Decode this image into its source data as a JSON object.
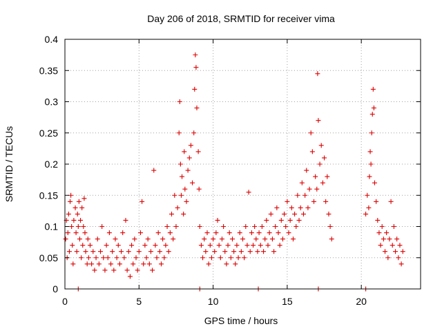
{
  "chart_data": {
    "type": "scatter",
    "title": "Day 206 of 2018, SRMTID for receiver vima",
    "xlabel": "GPS time / hours",
    "ylabel": "SRMTID / TECUs",
    "xlim": [
      0,
      24
    ],
    "ylim": [
      0,
      0.4
    ],
    "xticks": [
      0,
      5,
      10,
      15,
      20
    ],
    "xtick_labels": [
      "0",
      "5",
      "10",
      "15",
      "20"
    ],
    "yticks": [
      0,
      0.05,
      0.1,
      0.15,
      0.2,
      0.25,
      0.3,
      0.35,
      0.4
    ],
    "ytick_labels": [
      "0",
      "0.05",
      "0.1",
      "0.15",
      "0.2",
      "0.25",
      "0.3",
      "0.35",
      "0.4"
    ],
    "grid": true,
    "marker": "plus",
    "color": "#dd0000",
    "series": [
      {
        "name": "SRMTID",
        "points": [
          [
            0.05,
            0.08
          ],
          [
            0.1,
            0.11
          ],
          [
            0.15,
            0.05
          ],
          [
            0.2,
            0.09
          ],
          [
            0.25,
            0.12
          ],
          [
            0.3,
            0.06
          ],
          [
            0.35,
            0.14
          ],
          [
            0.4,
            0.15
          ],
          [
            0.45,
            0.1
          ],
          [
            0.5,
            0.07
          ],
          [
            0.55,
            0.04
          ],
          [
            0.6,
            0.11
          ],
          [
            0.7,
            0.13
          ],
          [
            0.75,
            0.09
          ],
          [
            0.8,
            0.06
          ],
          [
            0.85,
            0.12
          ],
          [
            0.9,
            0.1
          ],
          [
            0.95,
            0.14
          ],
          [
            1.0,
            0.08
          ],
          [
            1.05,
            0.11
          ],
          [
            1.1,
            0.05
          ],
          [
            1.15,
            0.13
          ],
          [
            1.2,
            0.07
          ],
          [
            1.25,
            0.1
          ],
          [
            1.3,
            0.145
          ],
          [
            1.35,
            0.09
          ],
          [
            1.4,
            0.06
          ],
          [
            1.5,
            0.04
          ],
          [
            1.55,
            0.08
          ],
          [
            1.6,
            0.05
          ],
          [
            1.7,
            0.07
          ],
          [
            1.8,
            0.04
          ],
          [
            1.9,
            0.06
          ],
          [
            2.0,
            0.03
          ],
          [
            2.1,
            0.05
          ],
          [
            2.2,
            0.08
          ],
          [
            2.3,
            0.04
          ],
          [
            2.4,
            0.06
          ],
          [
            2.5,
            0.1
          ],
          [
            2.6,
            0.05
          ],
          [
            2.7,
            0.03
          ],
          [
            2.8,
            0.07
          ],
          [
            2.9,
            0.05
          ],
          [
            3.0,
            0.09
          ],
          [
            3.1,
            0.04
          ],
          [
            3.2,
            0.06
          ],
          [
            3.3,
            0.03
          ],
          [
            3.4,
            0.08
          ],
          [
            3.5,
            0.05
          ],
          [
            3.6,
            0.07
          ],
          [
            3.7,
            0.04
          ],
          [
            3.8,
            0.06
          ],
          [
            3.9,
            0.09
          ],
          [
            4.0,
            0.05
          ],
          [
            4.1,
            0.11
          ],
          [
            4.2,
            0.03
          ],
          [
            4.3,
            0.06
          ],
          [
            4.4,
            0.02
          ],
          [
            4.5,
            0.07
          ],
          [
            4.6,
            0.04
          ],
          [
            4.7,
            0.08
          ],
          [
            4.8,
            0.05
          ],
          [
            4.9,
            0.03
          ],
          [
            5.0,
            0.06
          ],
          [
            5.1,
            0.09
          ],
          [
            5.2,
            0.14
          ],
          [
            5.3,
            0.04
          ],
          [
            5.4,
            0.07
          ],
          [
            5.5,
            0.05
          ],
          [
            5.6,
            0.08
          ],
          [
            5.7,
            0.04
          ],
          [
            5.8,
            0.06
          ],
          [
            5.9,
            0.03
          ],
          [
            6.0,
            0.19
          ],
          [
            6.1,
            0.07
          ],
          [
            6.2,
            0.05
          ],
          [
            6.3,
            0.09
          ],
          [
            6.4,
            0.06
          ],
          [
            6.5,
            0.04
          ],
          [
            6.6,
            0.08
          ],
          [
            6.7,
            0.05
          ],
          [
            6.8,
            0.07
          ],
          [
            6.9,
            0.1
          ],
          [
            7.0,
            0.06
          ],
          [
            7.1,
            0.09
          ],
          [
            7.2,
            0.12
          ],
          [
            7.3,
            0.08
          ],
          [
            7.4,
            0.15
          ],
          [
            7.5,
            0.1
          ],
          [
            7.6,
            0.13
          ],
          [
            7.7,
            0.25
          ],
          [
            7.75,
            0.3
          ],
          [
            7.8,
            0.2
          ],
          [
            7.85,
            0.15
          ],
          [
            7.9,
            0.18
          ],
          [
            8.0,
            0.12
          ],
          [
            8.05,
            0.22
          ],
          [
            8.1,
            0.16
          ],
          [
            8.2,
            0.14
          ],
          [
            8.3,
            0.19
          ],
          [
            8.4,
            0.21
          ],
          [
            8.5,
            0.23
          ],
          [
            8.6,
            0.17
          ],
          [
            8.7,
            0.25
          ],
          [
            8.75,
            0.32
          ],
          [
            8.8,
            0.375
          ],
          [
            8.85,
            0.355
          ],
          [
            8.9,
            0.29
          ],
          [
            9.0,
            0.22
          ],
          [
            9.05,
            0.16
          ],
          [
            9.1,
            0.1
          ],
          [
            9.2,
            0.07
          ],
          [
            9.3,
            0.05
          ],
          [
            9.4,
            0.08
          ],
          [
            9.5,
            0.06
          ],
          [
            9.6,
            0.09
          ],
          [
            9.7,
            0.04
          ],
          [
            9.8,
            0.07
          ],
          [
            9.9,
            0.05
          ],
          [
            10.0,
            0.08
          ],
          [
            10.1,
            0.06
          ],
          [
            10.2,
            0.09
          ],
          [
            10.3,
            0.11
          ],
          [
            10.4,
            0.07
          ],
          [
            10.5,
            0.05
          ],
          [
            10.6,
            0.08
          ],
          [
            10.7,
            0.1
          ],
          [
            10.8,
            0.06
          ],
          [
            10.9,
            0.04
          ],
          [
            11.0,
            0.07
          ],
          [
            11.1,
            0.09
          ],
          [
            11.2,
            0.05
          ],
          [
            11.3,
            0.08
          ],
          [
            11.4,
            0.06
          ],
          [
            11.5,
            0.04
          ],
          [
            11.6,
            0.07
          ],
          [
            11.7,
            0.05
          ],
          [
            11.8,
            0.09
          ],
          [
            11.9,
            0.06
          ],
          [
            12.0,
            0.08
          ],
          [
            12.1,
            0.05
          ],
          [
            12.2,
            0.1
          ],
          [
            12.3,
            0.07
          ],
          [
            12.4,
            0.155
          ],
          [
            12.5,
            0.06
          ],
          [
            12.6,
            0.09
          ],
          [
            12.7,
            0.07
          ],
          [
            12.8,
            0.1
          ],
          [
            12.9,
            0.08
          ],
          [
            13.0,
            0.06
          ],
          [
            13.1,
            0.09
          ],
          [
            13.2,
            0.07
          ],
          [
            13.3,
            0.1
          ],
          [
            13.4,
            0.06
          ],
          [
            13.5,
            0.08
          ],
          [
            13.6,
            0.11
          ],
          [
            13.7,
            0.07
          ],
          [
            13.8,
            0.09
          ],
          [
            13.9,
            0.12
          ],
          [
            14.0,
            0.08
          ],
          [
            14.1,
            0.06
          ],
          [
            14.2,
            0.1
          ],
          [
            14.3,
            0.13
          ],
          [
            14.4,
            0.09
          ],
          [
            14.5,
            0.07
          ],
          [
            14.6,
            0.11
          ],
          [
            14.7,
            0.08
          ],
          [
            14.8,
            0.12
          ],
          [
            14.9,
            0.1
          ],
          [
            15.0,
            0.14
          ],
          [
            15.1,
            0.09
          ],
          [
            15.2,
            0.11
          ],
          [
            15.3,
            0.13
          ],
          [
            15.4,
            0.08
          ],
          [
            15.5,
            0.12
          ],
          [
            15.6,
            0.1
          ],
          [
            15.7,
            0.15
          ],
          [
            15.8,
            0.11
          ],
          [
            15.9,
            0.13
          ],
          [
            16.0,
            0.17
          ],
          [
            16.1,
            0.12
          ],
          [
            16.2,
            0.15
          ],
          [
            16.3,
            0.19
          ],
          [
            16.4,
            0.13
          ],
          [
            16.5,
            0.16
          ],
          [
            16.6,
            0.25
          ],
          [
            16.7,
            0.22
          ],
          [
            16.8,
            0.14
          ],
          [
            16.9,
            0.18
          ],
          [
            17.0,
            0.16
          ],
          [
            17.05,
            0.345
          ],
          [
            17.1,
            0.27
          ],
          [
            17.2,
            0.2
          ],
          [
            17.3,
            0.23
          ],
          [
            17.4,
            0.17
          ],
          [
            17.5,
            0.21
          ],
          [
            17.6,
            0.14
          ],
          [
            17.7,
            0.18
          ],
          [
            17.8,
            0.12
          ],
          [
            17.9,
            0.1
          ],
          [
            18.0,
            0.08
          ],
          [
            20.3,
            0.12
          ],
          [
            20.4,
            0.15
          ],
          [
            20.5,
            0.13
          ],
          [
            20.55,
            0.18
          ],
          [
            20.6,
            0.22
          ],
          [
            20.65,
            0.2
          ],
          [
            20.7,
            0.25
          ],
          [
            20.75,
            0.28
          ],
          [
            20.8,
            0.32
          ],
          [
            20.85,
            0.29
          ],
          [
            20.9,
            0.17
          ],
          [
            21.0,
            0.14
          ],
          [
            21.1,
            0.11
          ],
          [
            21.2,
            0.09
          ],
          [
            21.3,
            0.07
          ],
          [
            21.4,
            0.1
          ],
          [
            21.5,
            0.08
          ],
          [
            21.6,
            0.06
          ],
          [
            21.7,
            0.09
          ],
          [
            21.8,
            0.05
          ],
          [
            21.9,
            0.08
          ],
          [
            22.0,
            0.14
          ],
          [
            22.1,
            0.07
          ],
          [
            22.2,
            0.1
          ],
          [
            22.3,
            0.06
          ],
          [
            22.4,
            0.08
          ],
          [
            22.5,
            0.05
          ],
          [
            22.6,
            0.07
          ],
          [
            22.7,
            0.04
          ],
          [
            22.8,
            0.06
          ]
        ],
        "baseline_points": [
          [
            0.9,
            0.0
          ],
          [
            9.1,
            0.0
          ],
          [
            13.05,
            0.0
          ],
          [
            17.1,
            0.0
          ],
          [
            20.3,
            0.0
          ]
        ]
      }
    ]
  }
}
